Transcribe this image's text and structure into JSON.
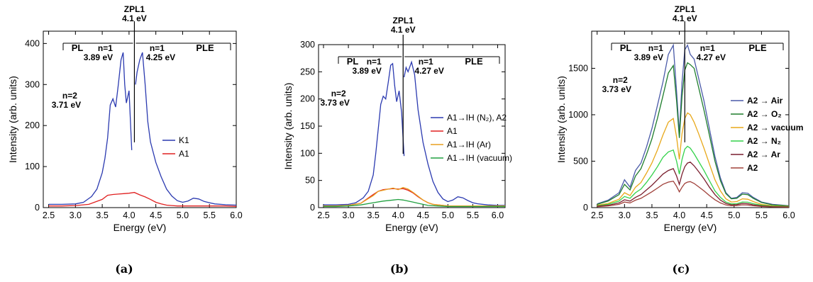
{
  "chart_data": [
    {
      "type": "line",
      "caption": "(a)",
      "xlabel": "Energy (eV)",
      "ylabel": "Intensity (arb. units)",
      "xlim": [
        2.4,
        6.0
      ],
      "ylim": [
        0,
        430
      ],
      "xticks": [
        "2.5",
        "3.0",
        "3.5",
        "4.0",
        "4.5",
        "5.0",
        "5.5",
        "6.0"
      ],
      "yticks": [
        "0",
        "100",
        "200",
        "300",
        "400"
      ],
      "legend": "right-middle",
      "annotations": {
        "zpl_title": "ZPL1",
        "zpl_energy": "4.1 eV",
        "pl": "PL",
        "ple": "PLE",
        "pl_n1_label": "n=1",
        "pl_n1_energy": "3.89 eV",
        "ple_n1_label": "n=1",
        "ple_n1_energy": "4.25 eV",
        "n2_label": "n=2",
        "n2_energy": "3.71 eV"
      },
      "series": [
        {
          "name": "K1",
          "color": "#2b3ab0",
          "x": [
            2.5,
            2.75,
            3.0,
            3.15,
            3.3,
            3.4,
            3.5,
            3.55,
            3.6,
            3.65,
            3.7,
            3.75,
            3.8,
            3.85,
            3.89,
            3.92,
            3.95,
            4.0,
            4.05
          ],
          "y": [
            8,
            8,
            9,
            13,
            27,
            45,
            85,
            120,
            170,
            250,
            265,
            245,
            300,
            360,
            378,
            300,
            255,
            285,
            140
          ]
        },
        {
          "name": "K1",
          "color": "#2b3ab0",
          "x": [
            4.12,
            4.15,
            4.2,
            4.25,
            4.3,
            4.35,
            4.4,
            4.5,
            4.6,
            4.7,
            4.8,
            4.9,
            5.0,
            5.1,
            5.2,
            5.3,
            5.4,
            5.5,
            5.6,
            5.8,
            6.0
          ],
          "y": [
            300,
            330,
            360,
            378,
            300,
            210,
            160,
            110,
            75,
            45,
            28,
            17,
            13,
            16,
            23,
            21,
            15,
            12,
            9,
            7,
            6
          ]
        },
        {
          "name": "A1",
          "color": "#e02020",
          "x": [
            2.5,
            2.75,
            3.0,
            3.25,
            3.5,
            3.6,
            3.7,
            3.8,
            3.9,
            4.0,
            4.1,
            4.2,
            4.3,
            4.4,
            4.5,
            4.6,
            4.7,
            4.8,
            4.9,
            5.0,
            5.2,
            5.4,
            5.6,
            5.8,
            6.0
          ],
          "y": [
            4,
            4,
            5,
            8,
            20,
            30,
            32,
            33,
            34,
            35,
            37,
            31,
            26,
            20,
            13,
            9,
            6,
            5,
            4,
            4,
            4,
            4,
            4,
            4,
            3
          ]
        }
      ]
    },
    {
      "type": "line",
      "caption": "(b)",
      "xlabel": "Energy (eV)",
      "ylabel": "Intensity (arb. units)",
      "xlim": [
        2.4,
        6.15
      ],
      "ylim": [
        0,
        300
      ],
      "xticks": [
        "2.5",
        "3.0",
        "3.5",
        "4.0",
        "4.5",
        "5.0",
        "5.5",
        "6.0"
      ],
      "yticks": [
        "0",
        "50",
        "100",
        "150",
        "200",
        "250",
        "300"
      ],
      "legend": "right-middle",
      "annotations": {
        "zpl_title": "ZPL1",
        "zpl_energy": "4.1 eV",
        "pl": "PL",
        "ple": "PLE",
        "pl_n1_label": "n=1",
        "pl_n1_energy": "3.89 eV",
        "ple_n1_label": "n=1",
        "ple_n1_energy": "4.27 eV",
        "n2_label": "n=2",
        "n2_energy": "3.73 eV"
      },
      "series": [
        {
          "name": "A1→IH (N₂), A2",
          "color": "#2b3ab0",
          "x": [
            2.5,
            2.75,
            3.0,
            3.15,
            3.3,
            3.4,
            3.5,
            3.55,
            3.6,
            3.65,
            3.7,
            3.75,
            3.8,
            3.85,
            3.89,
            3.93,
            3.97,
            4.02,
            4.07,
            4.12
          ],
          "y": [
            5,
            5,
            6,
            9,
            18,
            30,
            60,
            100,
            145,
            190,
            205,
            200,
            230,
            262,
            265,
            225,
            195,
            215,
            175,
            95
          ]
        },
        {
          "name": "A1→IH (N₂), A2",
          "color": "#2b3ab0",
          "x": [
            4.12,
            4.16,
            4.2,
            4.27,
            4.33,
            4.4,
            4.5,
            4.6,
            4.7,
            4.8,
            4.9,
            5.0,
            5.1,
            5.2,
            5.3,
            5.4,
            5.5,
            5.6,
            5.8,
            6.0,
            6.15
          ],
          "y": [
            240,
            258,
            250,
            268,
            245,
            180,
            120,
            80,
            48,
            28,
            16,
            11,
            14,
            20,
            18,
            13,
            9,
            7,
            5,
            4,
            4
          ]
        },
        {
          "name": "A1",
          "color": "#e02020",
          "x": [
            2.5,
            2.75,
            3.0,
            3.25,
            3.5,
            3.6,
            3.7,
            3.8,
            3.9,
            4.0,
            4.1,
            4.2,
            4.3,
            4.4,
            4.5,
            4.6,
            4.7,
            4.8,
            4.9,
            5.0,
            5.3,
            5.6,
            6.0,
            6.15
          ],
          "y": [
            3,
            3,
            4,
            8,
            24,
            30,
            33,
            34,
            35,
            34,
            35,
            32,
            27,
            20,
            14,
            9,
            6,
            5,
            4,
            3,
            3,
            3,
            3,
            3
          ]
        },
        {
          "name": "A1→IH (Ar)",
          "color": "#e8a020",
          "x": [
            2.5,
            2.75,
            3.0,
            3.25,
            3.5,
            3.6,
            3.7,
            3.8,
            3.9,
            4.0,
            4.1,
            4.2,
            4.3,
            4.4,
            4.5,
            4.6,
            4.7,
            4.8,
            4.9,
            5.0,
            5.3,
            5.6,
            6.0,
            6.15
          ],
          "y": [
            3,
            3,
            4,
            8,
            22,
            30,
            32,
            34,
            36,
            33,
            37,
            34,
            28,
            21,
            14,
            9,
            6,
            5,
            4,
            3,
            3,
            3,
            3,
            3
          ]
        },
        {
          "name": "A1→IH (vacuum)",
          "color": "#20a040",
          "x": [
            2.5,
            2.75,
            3.0,
            3.25,
            3.5,
            3.7,
            3.9,
            4.0,
            4.1,
            4.2,
            4.3,
            4.4,
            4.5,
            4.6,
            4.8,
            5.0,
            5.3,
            5.6,
            6.0,
            6.15
          ],
          "y": [
            2,
            2,
            3,
            5,
            9,
            12,
            14,
            15,
            14,
            12,
            10,
            8,
            6,
            4,
            3,
            2,
            2,
            2,
            2,
            2
          ]
        }
      ]
    },
    {
      "type": "line",
      "caption": "(c)",
      "xlabel": "Energy (eV)",
      "ylabel": "Intensity (arb. units)",
      "xlim": [
        2.4,
        6.0
      ],
      "ylim": [
        0,
        1900
      ],
      "xticks": [
        "2.5",
        "3.0",
        "3.5",
        "4.0",
        "4.5",
        "5.0",
        "5.5",
        "6.0"
      ],
      "yticks": [
        "0",
        "500",
        "1000",
        "1500"
      ],
      "legend": "right-middle",
      "annotations": {
        "zpl_title": "ZPL1",
        "zpl_energy": "4.1 eV",
        "pl": "PL",
        "ple": "PLE",
        "pl_n1_label": "n=1",
        "pl_n1_energy": "3.89 eV",
        "ple_n1_label": "n=1",
        "ple_n1_energy": "4.27 eV",
        "n2_label": "n=2",
        "n2_energy": "3.73 eV"
      },
      "series": [
        {
          "name": "A2 → Air",
          "color": "#4a5aa8",
          "x": [
            2.5,
            2.7,
            2.9,
            3.0,
            3.1,
            3.2,
            3.3,
            3.4,
            3.5,
            3.6,
            3.7,
            3.8,
            3.89,
            3.95,
            4.0,
            4.05,
            4.1,
            4.15,
            4.2,
            4.27,
            4.35,
            4.45,
            4.55,
            4.65,
            4.75,
            4.85,
            4.95,
            5.05,
            5.15,
            5.25,
            5.35,
            5.5,
            5.7,
            6.0
          ],
          "y": [
            40,
            80,
            160,
            300,
            220,
            400,
            480,
            650,
            850,
            1100,
            1350,
            1650,
            1750,
            1250,
            800,
            1350,
            1700,
            1750,
            1650,
            1600,
            1400,
            1150,
            850,
            550,
            320,
            160,
            100,
            110,
            160,
            155,
            110,
            60,
            35,
            20
          ]
        },
        {
          "name": "A2 → O₂",
          "color": "#1e7d2c",
          "x": [
            2.5,
            2.7,
            2.9,
            3.0,
            3.1,
            3.2,
            3.3,
            3.4,
            3.5,
            3.6,
            3.7,
            3.8,
            3.89,
            3.95,
            4.0,
            4.05,
            4.1,
            4.15,
            4.2,
            4.27,
            4.35,
            4.45,
            4.55,
            4.65,
            4.75,
            4.85,
            4.95,
            5.05,
            5.15,
            5.25,
            5.35,
            5.5,
            5.7,
            6.0
          ],
          "y": [
            35,
            70,
            140,
            250,
            190,
            340,
            420,
            570,
            740,
            960,
            1200,
            1450,
            1530,
            1150,
            750,
            1200,
            1480,
            1560,
            1540,
            1500,
            1300,
            1050,
            780,
            500,
            290,
            150,
            95,
            100,
            145,
            140,
            100,
            55,
            30,
            18
          ]
        },
        {
          "name": "A2 → vacuum",
          "color": "#e8a81a",
          "x": [
            2.5,
            2.7,
            2.9,
            3.0,
            3.1,
            3.2,
            3.3,
            3.4,
            3.5,
            3.6,
            3.7,
            3.8,
            3.89,
            3.95,
            4.0,
            4.05,
            4.1,
            4.15,
            4.2,
            4.27,
            4.35,
            4.45,
            4.55,
            4.65,
            4.75,
            4.85,
            4.95,
            5.05,
            5.15,
            5.25,
            5.35,
            5.5,
            5.7,
            6.0
          ],
          "y": [
            25,
            45,
            90,
            160,
            130,
            220,
            270,
            370,
            480,
            620,
            780,
            920,
            960,
            760,
            520,
            800,
            960,
            1020,
            1000,
            920,
            800,
            640,
            470,
            300,
            180,
            95,
            60,
            65,
            95,
            90,
            65,
            35,
            20,
            12
          ]
        },
        {
          "name": "A2 → N₂",
          "color": "#33d24a",
          "x": [
            2.5,
            2.7,
            2.9,
            3.0,
            3.1,
            3.2,
            3.3,
            3.4,
            3.5,
            3.6,
            3.7,
            3.8,
            3.89,
            3.95,
            4.0,
            4.05,
            4.1,
            4.15,
            4.2,
            4.27,
            4.35,
            4.45,
            4.55,
            4.65,
            4.75,
            4.85,
            4.95,
            5.05,
            5.15,
            5.25,
            5.35,
            5.5,
            5.7,
            6.0
          ],
          "y": [
            20,
            35,
            70,
            120,
            100,
            160,
            200,
            270,
            350,
            440,
            540,
            600,
            620,
            500,
            360,
            520,
            630,
            660,
            640,
            580,
            500,
            400,
            290,
            180,
            110,
            60,
            40,
            42,
            60,
            58,
            42,
            25,
            15,
            10
          ]
        },
        {
          "name": "A2 → Ar",
          "color": "#7a1f2e",
          "x": [
            2.5,
            2.7,
            2.9,
            3.0,
            3.1,
            3.2,
            3.3,
            3.4,
            3.5,
            3.6,
            3.7,
            3.8,
            3.89,
            3.95,
            4.0,
            4.05,
            4.1,
            4.15,
            4.2,
            4.27,
            4.35,
            4.45,
            4.55,
            4.65,
            4.75,
            4.85,
            4.95,
            5.05,
            5.15,
            5.25,
            5.35,
            5.5,
            5.7,
            6.0
          ],
          "y": [
            15,
            25,
            50,
            85,
            70,
            110,
            140,
            190,
            240,
            300,
            360,
            400,
            420,
            340,
            250,
            360,
            440,
            480,
            490,
            450,
            390,
            310,
            220,
            140,
            80,
            45,
            30,
            32,
            45,
            42,
            30,
            18,
            10,
            8
          ]
        },
        {
          "name": "A2",
          "color": "#a0403a",
          "x": [
            2.5,
            2.7,
            2.9,
            3.0,
            3.1,
            3.2,
            3.3,
            3.4,
            3.5,
            3.6,
            3.7,
            3.8,
            3.89,
            3.95,
            4.0,
            4.05,
            4.1,
            4.15,
            4.2,
            4.27,
            4.35,
            4.45,
            4.55,
            4.65,
            4.75,
            4.85,
            4.95,
            5.05,
            5.15,
            5.25,
            5.35,
            5.5,
            5.7,
            6.0
          ],
          "y": [
            10,
            18,
            35,
            60,
            50,
            80,
            100,
            135,
            170,
            210,
            250,
            275,
            285,
            230,
            170,
            220,
            260,
            275,
            280,
            260,
            225,
            180,
            130,
            85,
            50,
            28,
            20,
            22,
            30,
            28,
            20,
            12,
            8,
            6
          ]
        }
      ]
    }
  ]
}
